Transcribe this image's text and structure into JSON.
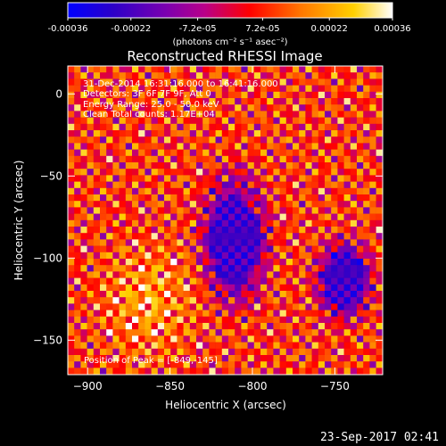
{
  "colorbar": {
    "tick_labels": [
      "-0.00036",
      "-0.00022",
      "-7.2e-05",
      "7.2e-05",
      "0.00022",
      "0.00036"
    ],
    "tick_values": [
      -0.00036,
      -0.00022,
      -7.2e-05,
      7.2e-05,
      0.00022,
      0.00036
    ],
    "range": [
      -0.00036,
      0.00036
    ],
    "unit_label": "(photons cm⁻² s⁻¹ asec⁻²)",
    "colors": [
      "#0000ff",
      "#2c00c8",
      "#7a00b0",
      "#b8008a",
      "#ff0000",
      "#ff7800",
      "#ffd000",
      "#ffffff"
    ]
  },
  "chart_data": {
    "type": "heatmap",
    "title": "Reconstructed RHESSI Image",
    "xlabel": "Heliocentric X (arcsec)",
    "ylabel": "Heliocentric Y (arcsec)",
    "xlim": [
      -912,
      -721
    ],
    "ylim": [
      -171,
      17
    ],
    "x_ticks": [
      -900,
      -850,
      -800,
      -750
    ],
    "x_tick_labels": [
      "−900",
      "−850",
      "−800",
      "−750"
    ],
    "y_ticks": [
      -150,
      -100,
      -50,
      0
    ],
    "y_tick_labels": [
      "−150",
      "−100",
      "−50",
      "0"
    ],
    "grid": false,
    "peak": [
      -849,
      -145
    ]
  },
  "annotations": {
    "time_range": "31-Dec-2014 16:31:16.000 to 16:41:16.000",
    "detectors": "Detectors: 3F 6F 7F 9F, Att 0",
    "energy_range": "Energy Range: 25.0 - 50.0 keV",
    "clean_info": "Clean     Total counts: 1.17E+04",
    "peak_position": "Position of Peak = [-849,-145]"
  },
  "footer": {
    "timestamp": "23-Sep-2017 02:41"
  }
}
